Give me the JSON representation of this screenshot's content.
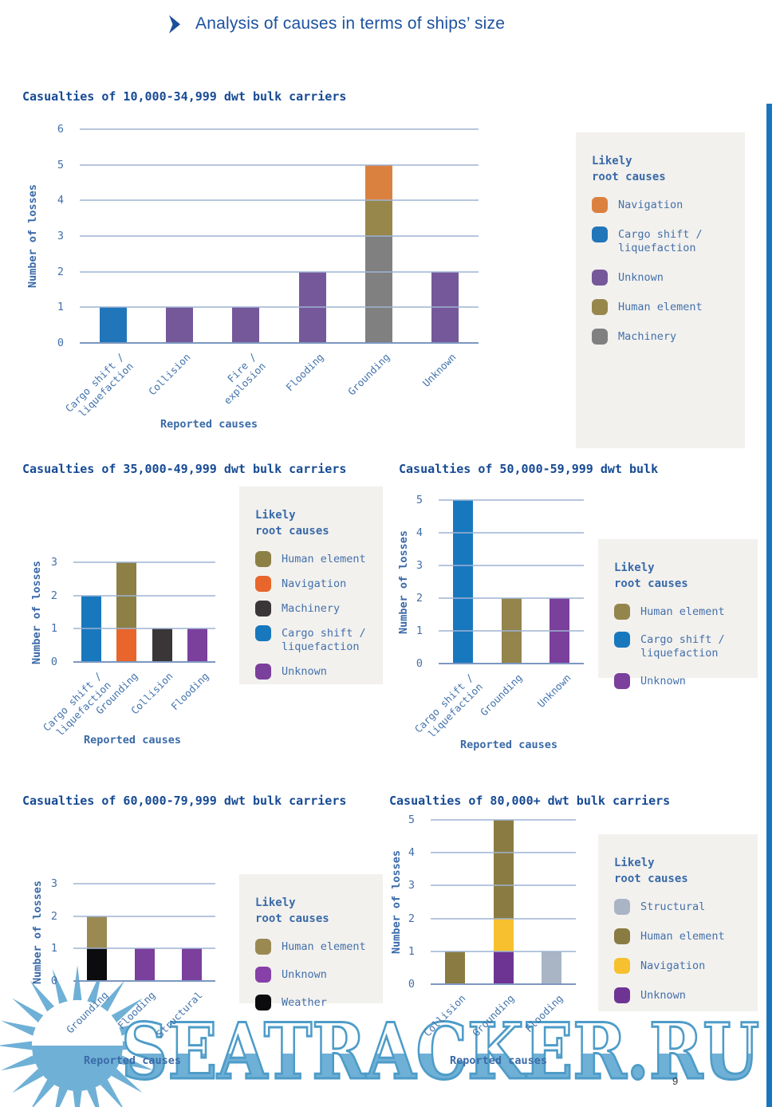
{
  "page": {
    "header": "Analysis of causes in terms of ships’ size",
    "page_number": "9",
    "watermark_text": "SEATRACKER.RU"
  },
  "colors": {
    "header_blue": "#1b4f9b",
    "title_blue": "#164a94",
    "axis_text_blue": "#4470aa",
    "grid_blue": "#9db3d3",
    "legend_panel": "#f2f1ee",
    "edge_stripe": "#1b75bb",
    "watermark_outline": "#4e9cc8",
    "watermark_fill": "#6fb0d6"
  },
  "chart_data": [
    {
      "type": "bar",
      "title": "Casualties of 10,000-34,999 dwt bulk carriers",
      "ylabel": "Number of losses",
      "xlabel": "Reported causes",
      "ymax": 6,
      "grid": true,
      "legend_position": "right",
      "categories": [
        "Cargo shift /\nliquefaction",
        "Collision",
        "Fire /\nexplosion",
        "Flooding",
        "Grounding",
        "Unknown"
      ],
      "bars": [
        [
          {
            "cause": "Cargo shift / liquefaction",
            "value": 1,
            "color": "#2176ba"
          }
        ],
        [
          {
            "cause": "Unknown",
            "value": 1,
            "color": "#75589a"
          }
        ],
        [
          {
            "cause": "Unknown",
            "value": 1,
            "color": "#75589a"
          }
        ],
        [
          {
            "cause": "Unknown",
            "value": 2,
            "color": "#75589a"
          }
        ],
        [
          {
            "cause": "Machinery",
            "value": 3,
            "color": "#808080"
          },
          {
            "cause": "Human element",
            "value": 1,
            "color": "#97874b"
          },
          {
            "cause": "Navigation",
            "value": 1,
            "color": "#db8140"
          }
        ],
        [
          {
            "cause": "Unknown",
            "value": 2,
            "color": "#75589a"
          }
        ]
      ],
      "legend": {
        "title": "Likely\nroot causes",
        "items": [
          {
            "label": "Navigation",
            "color": "#db8140"
          },
          {
            "label": "Cargo shift /\nliquefaction",
            "color": "#2176ba"
          },
          {
            "label": "Unknown",
            "color": "#75589a"
          },
          {
            "label": "Human element",
            "color": "#97874b"
          },
          {
            "label": "Machinery",
            "color": "#808080"
          }
        ]
      }
    },
    {
      "type": "bar",
      "title": "Casualties of 35,000-49,999 dwt bulk carriers",
      "ylabel": "Number of losses",
      "xlabel": "Reported causes",
      "ymax": 3,
      "grid": true,
      "legend_position": "right",
      "categories": [
        "Cargo shift /\nliquefaction",
        "Grounding",
        "Collision",
        "Flooding"
      ],
      "bars": [
        [
          {
            "cause": "Cargo shift / liquefaction",
            "value": 2,
            "color": "#1878be"
          }
        ],
        [
          {
            "cause": "Navigation",
            "value": 1,
            "color": "#e8652b"
          },
          {
            "cause": "Human element",
            "value": 2,
            "color": "#8c8045"
          }
        ],
        [
          {
            "cause": "Machinery",
            "value": 1,
            "color": "#3a3637"
          }
        ],
        [
          {
            "cause": "Unknown",
            "value": 1,
            "color": "#7b3f9c"
          }
        ]
      ],
      "legend": {
        "title": "Likely\nroot causes",
        "items": [
          {
            "label": "Human element",
            "color": "#8c8045"
          },
          {
            "label": "Navigation",
            "color": "#e8652b"
          },
          {
            "label": "Machinery",
            "color": "#3a3637"
          },
          {
            "label": "Cargo shift /\nliquefaction",
            "color": "#1878be"
          },
          {
            "label": "Unknown",
            "color": "#7b3f9c"
          }
        ]
      }
    },
    {
      "type": "bar",
      "title": "Casualties of 50,000-59,999 dwt bulk",
      "ylabel": "Number of losses",
      "xlabel": "Reported causes",
      "ymax": 5,
      "grid": true,
      "legend_position": "right",
      "categories": [
        "Cargo shift /\nliquefaction",
        "Grounding",
        "Unknown"
      ],
      "bars": [
        [
          {
            "cause": "Cargo shift / liquefaction",
            "value": 5,
            "color": "#1878be"
          }
        ],
        [
          {
            "cause": "Human element",
            "value": 2,
            "color": "#94854d"
          }
        ],
        [
          {
            "cause": "Unknown",
            "value": 2,
            "color": "#7b3f9c"
          }
        ]
      ],
      "legend": {
        "title": "Likely\nroot causes",
        "items": [
          {
            "label": "Human element",
            "color": "#94854d"
          },
          {
            "label": "Cargo shift /\nliquefaction",
            "color": "#1878be"
          },
          {
            "label": "Unknown",
            "color": "#7b3f9c"
          }
        ]
      }
    },
    {
      "type": "bar",
      "title": "Casualties of 60,000-79,999 dwt bulk carriers",
      "ylabel": "Number of losses",
      "xlabel": "Reported causes",
      "ymax": 3,
      "grid": true,
      "legend_position": "right",
      "categories": [
        "Grounding",
        "Flooding",
        "Structural"
      ],
      "bars": [
        [
          {
            "cause": "Weather",
            "value": 1,
            "color": "#0c0c0e"
          },
          {
            "cause": "Human element",
            "value": 1,
            "color": "#9a8a52"
          }
        ],
        [
          {
            "cause": "Unknown",
            "value": 1,
            "color": "#7b3f9c"
          }
        ],
        [
          {
            "cause": "Unknown",
            "value": 1,
            "color": "#7b3f9c"
          }
        ]
      ],
      "legend": {
        "title": "Likely\nroot causes",
        "items": [
          {
            "label": "Human element",
            "color": "#9a8a52"
          },
          {
            "label": "Unknown",
            "color": "#8640a8"
          },
          {
            "label": "Weather",
            "color": "#0c0c0e"
          }
        ]
      }
    },
    {
      "type": "bar",
      "title": "Casualties of 80,000+ dwt bulk carriers",
      "ylabel": "Number of losses",
      "xlabel": "Reported causes",
      "ymax": 5,
      "grid": true,
      "legend_position": "right",
      "categories": [
        "Collision",
        "Grounding",
        "Flooding"
      ],
      "bars": [
        [
          {
            "cause": "Human element",
            "value": 1,
            "color": "#8a7b42"
          }
        ],
        [
          {
            "cause": "Unknown",
            "value": 1,
            "color": "#6e3494"
          },
          {
            "cause": "Navigation",
            "value": 1,
            "color": "#f6c02e"
          },
          {
            "cause": "Human element",
            "value": 3,
            "color": "#8a7b42"
          }
        ],
        [
          {
            "cause": "Structural",
            "value": 1,
            "color": "#a9b5c5"
          }
        ]
      ],
      "legend": {
        "title": "Likely\nroot causes",
        "items": [
          {
            "label": "Structural",
            "color": "#a9b5c5"
          },
          {
            "label": "Human element",
            "color": "#8a7b42"
          },
          {
            "label": "Navigation",
            "color": "#f6c02e"
          },
          {
            "label": "Unknown",
            "color": "#6e3494"
          }
        ]
      }
    }
  ]
}
